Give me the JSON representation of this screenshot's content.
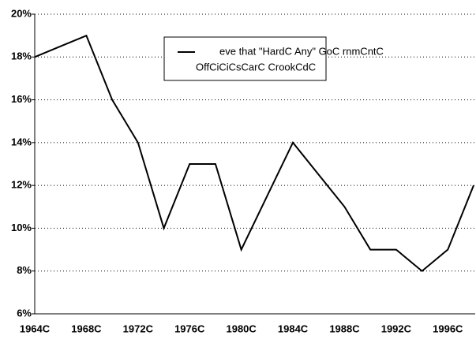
{
  "chart_data": {
    "type": "line",
    "legend_lines": [
      "eve that \"HardC Any\" GoC rnmCntC",
      "OffCiCiCsCarC CrookCdC"
    ],
    "categories": [
      "1964C",
      null,
      "1968C",
      null,
      "1972C",
      null,
      "1976C",
      null,
      "1980C",
      null,
      "1984C",
      null,
      "1988C",
      null,
      "1992C",
      null,
      "1996C",
      null
    ],
    "series": [
      {
        "name": "eve that \"HardC Any\" GoC rnmCntC OffCiCiCsCarC CrookCdC",
        "color": "#000000",
        "values": [
          18,
          18.5,
          19,
          16,
          14,
          10,
          13,
          13,
          9,
          11.5,
          14,
          12.5,
          11,
          9,
          9,
          8,
          9,
          12
        ]
      }
    ],
    "ylim": [
      6,
      20
    ],
    "yticks": [
      {
        "value": 6,
        "label": "6%"
      },
      {
        "value": 8,
        "label": "8%"
      },
      {
        "value": 10,
        "label": "10%"
      },
      {
        "value": 12,
        "label": "12%"
      },
      {
        "value": 14,
        "label": "14%"
      },
      {
        "value": 16,
        "label": "16%"
      },
      {
        "value": 18,
        "label": "18%"
      },
      {
        "value": 20,
        "label": "20%"
      }
    ],
    "grid": true
  }
}
